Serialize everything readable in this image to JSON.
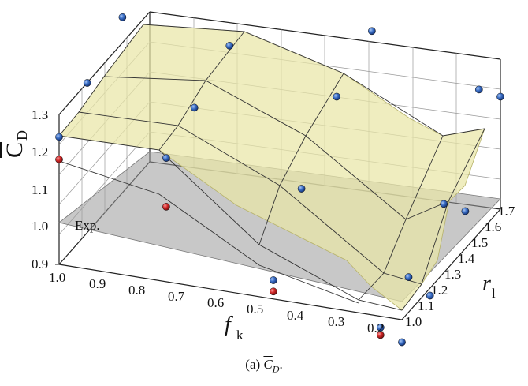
{
  "chart_data": {
    "type": "surface3d",
    "z_axis": {
      "label": "C",
      "label_subscript": "D",
      "ticks": [
        "0.9",
        "1.0",
        "1.1",
        "1.2",
        "1.3"
      ]
    },
    "x_axis": {
      "label": "f",
      "label_subscript": "k",
      "ticks": [
        "1.0",
        "0.9",
        "0.8",
        "0.7",
        "0.6",
        "0.5",
        "0.4",
        "0.3",
        "0.2"
      ]
    },
    "y_axis": {
      "label": "r",
      "label_subscript": "l",
      "ticks": [
        "1.0",
        "1.1",
        "1.2",
        "1.3",
        "1.4",
        "1.5",
        "1.6",
        "1.7"
      ]
    },
    "reference_plane": {
      "label": "Exp.",
      "value": 1.0
    },
    "series": [
      {
        "marker": "blue",
        "points": [
          {
            "fk": 1.0,
            "rl": 1.0,
            "cd": 1.24
          },
          {
            "fk": 1.0,
            "rl": 1.2,
            "cd": 1.3
          },
          {
            "fk": 1.0,
            "rl": 1.45,
            "cd": 1.37
          },
          {
            "fk": 1.0,
            "rl": 1.7,
            "cd": 1.42
          },
          {
            "fk": 0.75,
            "rl": 1.0,
            "cd": 1.23
          },
          {
            "fk": 0.75,
            "rl": 1.2,
            "cd": 1.28
          },
          {
            "fk": 0.75,
            "rl": 1.45,
            "cd": 1.34
          },
          {
            "fk": 0.75,
            "rl": 1.7,
            "cd": 1.4
          },
          {
            "fk": 0.5,
            "rl": 1.0,
            "cd": 0.95
          },
          {
            "fk": 0.5,
            "rl": 1.2,
            "cd": 1.11
          },
          {
            "fk": 0.5,
            "rl": 1.45,
            "cd": 1.25
          },
          {
            "fk": 0.5,
            "rl": 1.7,
            "cd": 1.32
          },
          {
            "fk": 0.25,
            "rl": 1.0,
            "cd": 0.87
          },
          {
            "fk": 0.25,
            "rl": 1.2,
            "cd": 0.92
          },
          {
            "fk": 0.25,
            "rl": 1.45,
            "cd": 1.01
          },
          {
            "fk": 0.25,
            "rl": 1.7,
            "cd": 1.21
          },
          {
            "fk": 0.2,
            "rl": 1.0,
            "cd": 0.84
          },
          {
            "fk": 0.2,
            "rl": 1.2,
            "cd": 0.88
          },
          {
            "fk": 0.2,
            "rl": 1.45,
            "cd": 1.0
          },
          {
            "fk": 0.2,
            "rl": 1.7,
            "cd": 1.2
          }
        ]
      },
      {
        "marker": "red",
        "points": [
          {
            "fk": 1.0,
            "rl": 1.0,
            "cd": 1.18
          },
          {
            "fk": 0.75,
            "rl": 1.0,
            "cd": 1.1
          },
          {
            "fk": 0.5,
            "rl": 1.0,
            "cd": 0.92
          },
          {
            "fk": 0.25,
            "rl": 1.0,
            "cd": 0.85
          }
        ]
      }
    ],
    "caption": {
      "prefix": "(a)",
      "symbol": "C",
      "subscript": "D",
      "suffix": "."
    }
  }
}
